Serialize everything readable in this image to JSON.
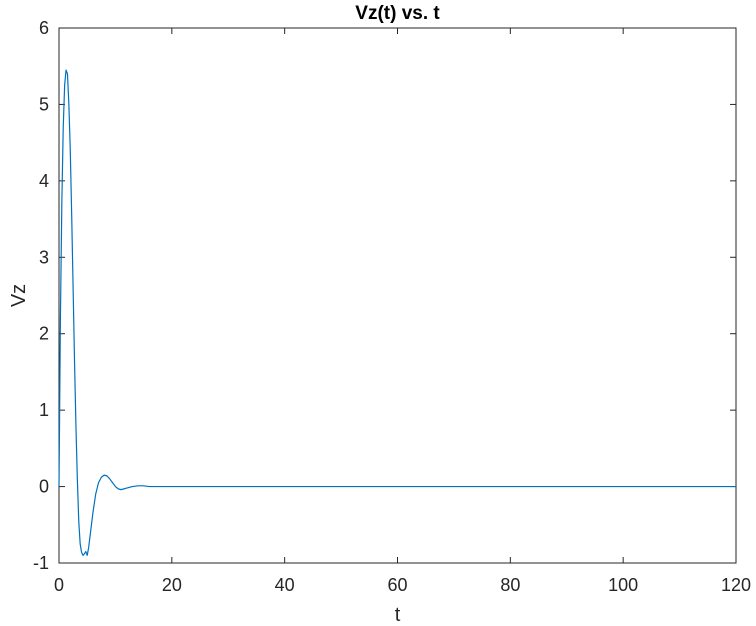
{
  "chart_data": {
    "type": "line",
    "title": "Vz(t) vs. t",
    "xlabel": "t",
    "ylabel": "Vz",
    "xlim": [
      0,
      120
    ],
    "ylim": [
      -1,
      6
    ],
    "xticks": [
      0,
      20,
      40,
      60,
      80,
      100,
      120
    ],
    "yticks": [
      -1,
      0,
      1,
      2,
      3,
      4,
      5,
      6
    ],
    "xtick_labels": [
      "0",
      "20",
      "40",
      "60",
      "80",
      "100",
      "120"
    ],
    "ytick_labels": [
      "-1",
      "0",
      "1",
      "2",
      "3",
      "4",
      "5",
      "6"
    ],
    "grid": false,
    "box": true,
    "series": [
      {
        "color": "#0072BD",
        "x": [
          0,
          0.25,
          0.5,
          0.75,
          1.0,
          1.25,
          1.5,
          1.75,
          2.0,
          2.25,
          2.5,
          2.75,
          3.0,
          3.25,
          3.5,
          3.75,
          4.0,
          4.25,
          4.5,
          4.75,
          5.0,
          5.25,
          5.5,
          6.0,
          6.5,
          7.0,
          7.5,
          8.0,
          8.5,
          9.0,
          9.5,
          10.0,
          10.5,
          11.0,
          11.5,
          12.0,
          13.0,
          14.0,
          15.0,
          16.0,
          18.0,
          20.0,
          40.0,
          60.0,
          80.0,
          100.0,
          120.0
        ],
        "y": [
          0.0,
          2.2,
          3.7,
          4.7,
          5.25,
          5.45,
          5.4,
          5.0,
          4.4,
          3.55,
          2.6,
          1.65,
          0.8,
          0.1,
          -0.45,
          -0.75,
          -0.86,
          -0.9,
          -0.88,
          -0.85,
          -0.9,
          -0.8,
          -0.65,
          -0.35,
          -0.1,
          0.05,
          0.12,
          0.15,
          0.14,
          0.1,
          0.05,
          0.0,
          -0.03,
          -0.04,
          -0.03,
          -0.02,
          0.0,
          0.01,
          0.01,
          0.0,
          0.0,
          0.0,
          0.0,
          0.0,
          0.0,
          0.0,
          0.0
        ]
      }
    ]
  }
}
